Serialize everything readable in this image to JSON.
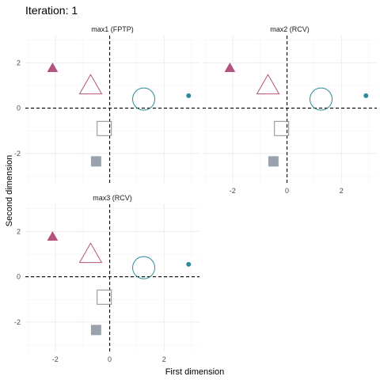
{
  "title": "Iteration: 1",
  "colors": {
    "magenta": "#b5537f",
    "teal": "#2e8b9a",
    "grey_border": "#8d8d8d",
    "grey_fill": "#9aa3ad"
  },
  "chart_data": {
    "type": "scatter",
    "title": "Iteration: 1",
    "xlabel": "First dimension",
    "ylabel": "Second dimension",
    "xlim": [
      -3.1,
      3.3
    ],
    "ylim": [
      -3.3,
      3.2
    ],
    "x_ticks": [
      -2,
      0,
      2
    ],
    "y_ticks": [
      -2,
      0,
      2
    ],
    "reference_lines": {
      "x": 0,
      "y": 0,
      "style": "dashed"
    },
    "grid": true,
    "legend": "none",
    "panels": [
      {
        "name": "max1 (FPTP)",
        "x_tick_labels": false,
        "y_tick_labels": true
      },
      {
        "name": "max2 (RCV)",
        "x_tick_labels": true,
        "y_tick_labels": false
      },
      {
        "name": "max3 (RCV)",
        "x_tick_labels": true,
        "y_tick_labels": true
      }
    ],
    "points": [
      {
        "x": -2.1,
        "y": 1.75,
        "shape": "triangle-filled",
        "size": "small",
        "color": "magenta"
      },
      {
        "x": -0.7,
        "y": 0.95,
        "shape": "triangle-open",
        "size": "large",
        "color": "magenta"
      },
      {
        "x": 1.25,
        "y": 0.4,
        "shape": "circle-open",
        "size": "large",
        "color": "teal"
      },
      {
        "x": 2.9,
        "y": 0.55,
        "shape": "circle-filled",
        "size": "tiny",
        "color": "teal"
      },
      {
        "x": -0.2,
        "y": -0.9,
        "shape": "square-open",
        "size": "medium",
        "color": "grey_border"
      },
      {
        "x": -0.5,
        "y": -2.35,
        "shape": "square-filled",
        "size": "small",
        "color": "grey_fill"
      }
    ]
  }
}
